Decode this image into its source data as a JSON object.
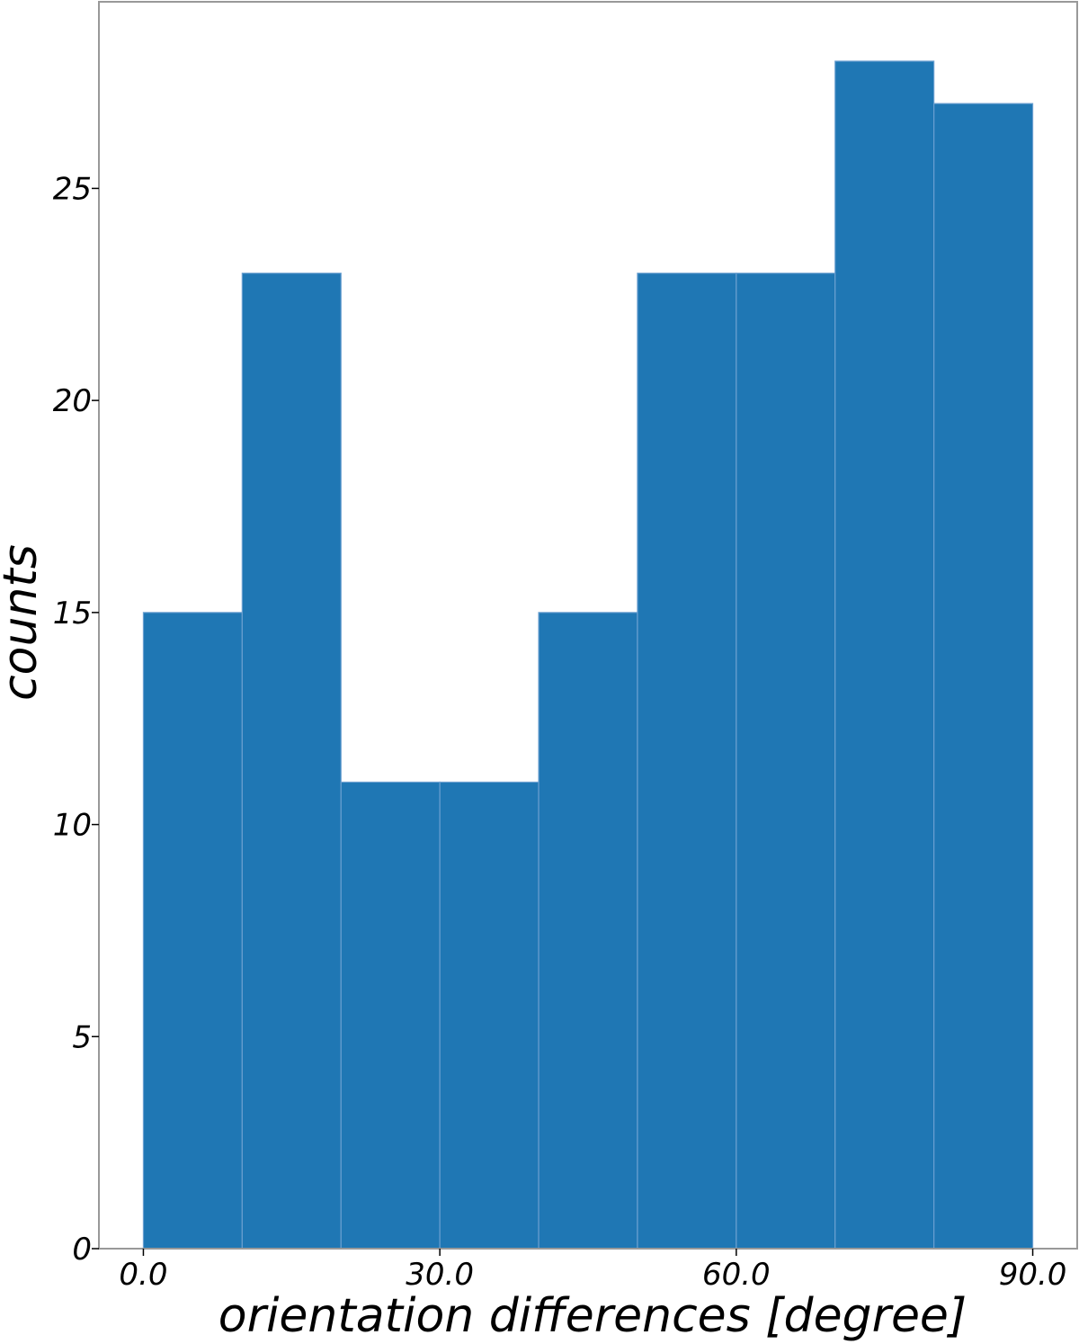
{
  "chart_data": {
    "type": "bar",
    "title": "",
    "xlabel": "orientation differences [degree]",
    "ylabel": "counts",
    "bin_edges": [
      0,
      10,
      20,
      30,
      40,
      50,
      60,
      70,
      80,
      90
    ],
    "values": [
      15,
      23,
      11,
      11,
      15,
      23,
      23,
      28,
      27
    ],
    "xlim": [
      -4.5,
      94.5
    ],
    "ylim": [
      0,
      29.4
    ],
    "x_ticks": [
      0,
      30,
      60,
      90
    ],
    "x_tick_labels": [
      "0.0",
      "30.0",
      "60.0",
      "90.0"
    ],
    "y_ticks": [
      0,
      5,
      10,
      15,
      20,
      25
    ],
    "y_tick_labels": [
      "0",
      "5",
      "10",
      "15",
      "20",
      "25"
    ],
    "grid": false,
    "legend": "none",
    "bar_color": "#1f77b4",
    "bar_edge_color": "#6a9fd0"
  }
}
